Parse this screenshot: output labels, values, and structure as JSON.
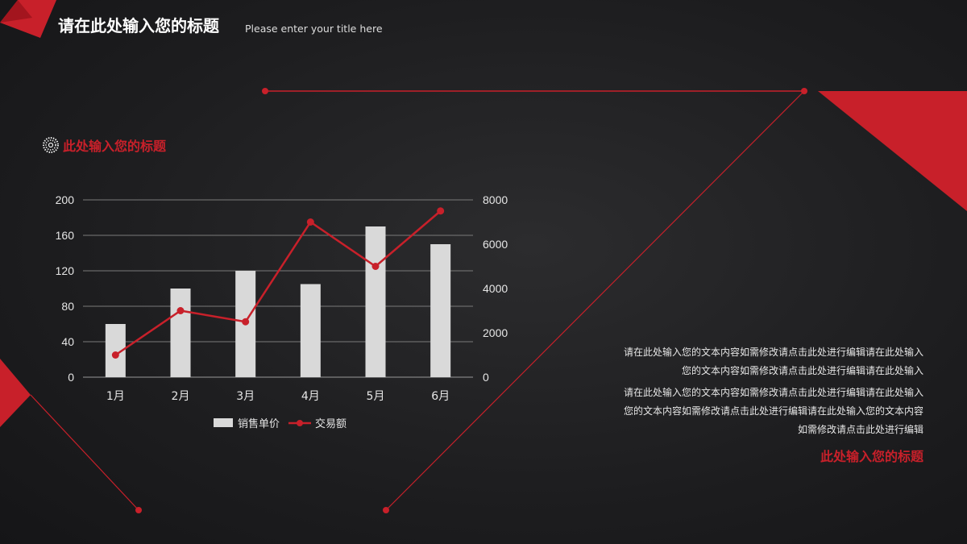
{
  "header": {
    "title": "请在此处输入您的标题",
    "subtitle": "Please enter your title here"
  },
  "section_title": "此处输入您的标题",
  "text": {
    "paragraph1": "请在此处输入您的文本内容如需修改请点击此处进行编辑请在此处输入您的文本内容如需修改请点击此处进行编辑请在此处输入",
    "paragraph2": "请在此处输入您的文本内容如需修改请点击此处进行编辑请在此处输入您的文本内容如需修改请点击此处进行编辑请在此处输入您的文本内容如需修改请点击此处进行编辑",
    "section_title2": "此处输入您的标题"
  },
  "colors": {
    "accent": "#c8202a",
    "bar": "#d9d9d9",
    "grid": "#8a8a8a"
  },
  "icons": {
    "section": "dotted-circle-icon"
  },
  "chart_data": {
    "type": "bar+line",
    "categories": [
      "1月",
      "2月",
      "3月",
      "4月",
      "5月",
      "6月"
    ],
    "series": [
      {
        "name": "销售单价",
        "type": "bar",
        "axis": "left",
        "values": [
          60,
          100,
          120,
          105,
          170,
          150
        ]
      },
      {
        "name": "交易额",
        "type": "line",
        "axis": "right",
        "values": [
          1000,
          3000,
          2500,
          7000,
          5000,
          7500
        ]
      }
    ],
    "ylim_left": [
      0,
      200
    ],
    "yticks_left": [
      0,
      40,
      80,
      120,
      160,
      200
    ],
    "ylim_right": [
      0,
      8000
    ],
    "yticks_right": [
      0,
      2000,
      4000,
      6000,
      8000
    ],
    "grid": true,
    "legend": "bottom"
  }
}
